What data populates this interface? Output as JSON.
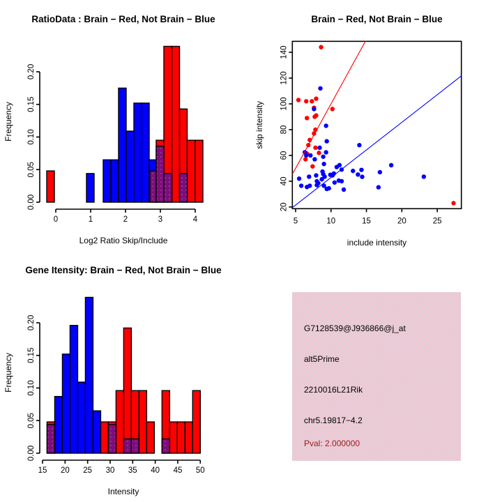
{
  "colors": {
    "red": "#FF0000",
    "blue": "#0000FF",
    "purple": "#7D0D7C",
    "purple_dot": "#A85FA8",
    "pink_box": "#F3C8D2",
    "pval_text": "#9B1B1B",
    "axis": "#000000",
    "background": "#FFFFFF"
  },
  "chart_data": [
    {
      "type": "bar",
      "name": "ratio-histogram",
      "title": "RatioData : Brain − Red, Not Brain − Blue",
      "xlabel": "Log2 Ratio Skip/Include",
      "ylabel": "Frequency",
      "xlim": [
        -0.46,
        4.34
      ],
      "ylim": [
        0,
        0.247
      ],
      "grid": false,
      "xticks": [
        {
          "v": 0,
          "label": "0"
        },
        {
          "v": 1,
          "label": "1"
        },
        {
          "v": 2,
          "label": "2"
        },
        {
          "v": 3,
          "label": "3"
        },
        {
          "v": 4,
          "label": "4"
        }
      ],
      "yticks": [
        {
          "v": 0,
          "label": "0.00"
        },
        {
          "v": 0.05,
          "label": "0.05"
        },
        {
          "v": 0.1,
          "label": "0.10"
        },
        {
          "v": 0.15,
          "label": "0.15"
        },
        {
          "v": 0.2,
          "label": "0.20"
        }
      ],
      "series": [
        {
          "name": "brain-red",
          "color": "#FF0000",
          "bars": [
            [
              -0.26,
              -0.04,
              0.048
            ],
            [
              2.88,
              3.1,
              0.095
            ],
            [
              3.1,
              3.33,
              0.239
            ],
            [
              3.33,
              3.55,
              0.239
            ],
            [
              3.55,
              3.77,
              0.143
            ],
            [
              3.77,
              4.0,
              0.095
            ],
            [
              4.0,
              4.22,
              0.095
            ]
          ]
        },
        {
          "name": "notbrain-blue",
          "color": "#0000FF",
          "bars": [
            [
              0.88,
              1.1,
              0.044
            ],
            [
              1.36,
              1.58,
              0.065
            ],
            [
              1.58,
              1.8,
              0.065
            ],
            [
              1.8,
              2.02,
              0.175
            ],
            [
              2.02,
              2.24,
              0.109
            ],
            [
              2.24,
              2.46,
              0.152
            ],
            [
              2.46,
              2.68,
              0.152
            ],
            [
              2.68,
              2.9,
              0.065
            ]
          ]
        },
        {
          "name": "overlap-purple",
          "color": "#7D0D7C",
          "pattern": "dots",
          "bars": [
            [
              2.7,
              2.92,
              0.048
            ],
            [
              2.88,
              3.1,
              0.086
            ],
            [
              3.1,
              3.33,
              0.044
            ],
            [
              3.55,
              3.77,
              0.044
            ]
          ]
        }
      ]
    },
    {
      "type": "scatter",
      "name": "intensity-scatter",
      "title": "Brain − Red, Not Brain − Blue",
      "xlabel": "include intensity",
      "ylabel": "skip intensity",
      "xlim": [
        4.54,
        28.4
      ],
      "ylim": [
        18.7,
        148.5
      ],
      "grid": false,
      "box": true,
      "xticks": [
        {
          "v": 5,
          "label": "5"
        },
        {
          "v": 10,
          "label": "10"
        },
        {
          "v": 15,
          "label": "15"
        },
        {
          "v": 20,
          "label": "20"
        },
        {
          "v": 25,
          "label": "25"
        }
      ],
      "yticks": [
        {
          "v": 20,
          "label": "20"
        },
        {
          "v": 40,
          "label": "40"
        },
        {
          "v": 60,
          "label": "60"
        },
        {
          "v": 80,
          "label": "80"
        },
        {
          "v": 100,
          "label": "100"
        },
        {
          "v": 120,
          "label": "120"
        },
        {
          "v": 140,
          "label": "140"
        }
      ],
      "series": [
        {
          "name": "brain-red",
          "color": "#FF0000",
          "points": [
            [
              8.6,
              144
            ],
            [
              5.4,
              103
            ],
            [
              6.5,
              102
            ],
            [
              7.3,
              102
            ],
            [
              7.9,
              104
            ],
            [
              7.6,
              97
            ],
            [
              10.2,
              96
            ],
            [
              6.6,
              89
            ],
            [
              7.7,
              90
            ],
            [
              7.9,
              91
            ],
            [
              7.8,
              80
            ],
            [
              7.6,
              77
            ],
            [
              7.0,
              72
            ],
            [
              6.8,
              68
            ],
            [
              7.8,
              66
            ],
            [
              6.6,
              61.5
            ],
            [
              6.4,
              57
            ],
            [
              8.3,
              62
            ],
            [
              7.4,
              51.5
            ],
            [
              27.3,
              23
            ]
          ]
        },
        {
          "name": "notbrain-blue",
          "color": "#0000FF",
          "points": [
            [
              8.5,
              112
            ],
            [
              7.6,
              96
            ],
            [
              9.3,
              83
            ],
            [
              9.4,
              71
            ],
            [
              14,
              68
            ],
            [
              8.4,
              66
            ],
            [
              6.3,
              62.5
            ],
            [
              7.1,
              60
            ],
            [
              9.3,
              62.4
            ],
            [
              8.9,
              59
            ],
            [
              6.5,
              60
            ],
            [
              7.7,
              57
            ],
            [
              9.0,
              53.4
            ],
            [
              11.2,
              52.5
            ],
            [
              18.5,
              52.4
            ],
            [
              10.8,
              51
            ],
            [
              11.5,
              49
            ],
            [
              13.1,
              48
            ],
            [
              14.3,
              48.8
            ],
            [
              10.4,
              46
            ],
            [
              16.9,
              47
            ],
            [
              13.8,
              45.2
            ],
            [
              14.4,
              43.4
            ],
            [
              5.5,
              42
            ],
            [
              6.9,
              43.5
            ],
            [
              7.9,
              44.5
            ],
            [
              8.8,
              47.5
            ],
            [
              8.9,
              45.5
            ],
            [
              9.1,
              43.5
            ],
            [
              8.7,
              41.5
            ],
            [
              9.9,
              45
            ],
            [
              10.2,
              44.5
            ],
            [
              23.1,
              43.5
            ],
            [
              11.1,
              40.5
            ],
            [
              11.5,
              40
            ],
            [
              8.0,
              40
            ],
            [
              8.2,
              38.5
            ],
            [
              10.5,
              39
            ],
            [
              5.8,
              36.5
            ],
            [
              6.6,
              35.5
            ],
            [
              7.0,
              36.5
            ],
            [
              8.0,
              37
            ],
            [
              9.0,
              36.5
            ],
            [
              9.4,
              34
            ],
            [
              9.7,
              34.5
            ],
            [
              11.8,
              33.5
            ],
            [
              16.7,
              35.3
            ]
          ]
        }
      ],
      "lines": [
        {
          "name": "brain-fit-line",
          "color": "#FF0000",
          "from": [
            4.54,
            45.4
          ],
          "to": [
            14.85,
            148.5
          ]
        },
        {
          "name": "notbrain-fit-line",
          "color": "#0000FF",
          "from": [
            4.54,
            19.5
          ],
          "to": [
            28.4,
            121.7
          ]
        }
      ]
    },
    {
      "type": "bar",
      "name": "gene-histogram",
      "title": "Gene Itensity: Brain − Red, Not Brain − Blue",
      "xlabel": "Intensity",
      "ylabel": "Frequency",
      "xlim": [
        14.38,
        51.5
      ],
      "ylim": [
        0,
        0.247
      ],
      "grid": false,
      "xticks": [
        {
          "v": 15,
          "label": "15"
        },
        {
          "v": 20,
          "label": "20"
        },
        {
          "v": 25,
          "label": "25"
        },
        {
          "v": 30,
          "label": "30"
        },
        {
          "v": 35,
          "label": "35"
        },
        {
          "v": 40,
          "label": "40"
        },
        {
          "v": 45,
          "label": "45"
        },
        {
          "v": 50,
          "label": "50"
        }
      ],
      "yticks": [
        {
          "v": 0,
          "label": "0.00"
        },
        {
          "v": 0.05,
          "label": "0.05"
        },
        {
          "v": 0.1,
          "label": "0.10"
        },
        {
          "v": 0.15,
          "label": "0.15"
        },
        {
          "v": 0.2,
          "label": "0.20"
        }
      ],
      "series": [
        {
          "name": "brain-red",
          "color": "#FF0000",
          "bars": [
            [
              16,
              17.7,
              0.048
            ],
            [
              27.9,
              29.6,
              0.048
            ],
            [
              29.6,
              31.3,
              0.048
            ],
            [
              31.3,
              33,
              0.096
            ],
            [
              33,
              34.7,
              0.192
            ],
            [
              34.7,
              36.4,
              0.096
            ],
            [
              36.4,
              38.1,
              0.096
            ],
            [
              38.1,
              39.8,
              0.048
            ],
            [
              41.5,
              43.2,
              0.096
            ],
            [
              43.2,
              44.9,
              0.048
            ],
            [
              44.9,
              46.6,
              0.048
            ],
            [
              46.6,
              48.3,
              0.048
            ],
            [
              48.3,
              50,
              0.096
            ]
          ]
        },
        {
          "name": "notbrain-blue",
          "color": "#0000FF",
          "bars": [
            [
              17.7,
              19.4,
              0.087
            ],
            [
              19.4,
              21.1,
              0.152
            ],
            [
              21.1,
              22.8,
              0.196
            ],
            [
              22.8,
              24.5,
              0.109
            ],
            [
              24.5,
              26.2,
              0.239
            ],
            [
              26.2,
              27.9,
              0.065
            ]
          ]
        },
        {
          "name": "overlap-purple",
          "color": "#7D0D7C",
          "pattern": "dots",
          "bars": [
            [
              16,
              17.7,
              0.044
            ],
            [
              29.6,
              31.3,
              0.044
            ],
            [
              33,
              34.7,
              0.022
            ],
            [
              34.7,
              36.4,
              0.022
            ],
            [
              41.5,
              43.2,
              0.022
            ]
          ]
        }
      ]
    }
  ],
  "info_box": {
    "lines": [
      {
        "text": "G7128539@J936866@j_at",
        "color": "#000000"
      },
      {
        "text": "alt5Prime",
        "color": "#000000"
      },
      {
        "text": "2210016L21Rik",
        "color": "#000000"
      },
      {
        "text": "chr5.19817−4.2",
        "color": "#000000"
      },
      {
        "text": "Pval: 2.000000",
        "color": "#9B1B1B"
      }
    ]
  }
}
